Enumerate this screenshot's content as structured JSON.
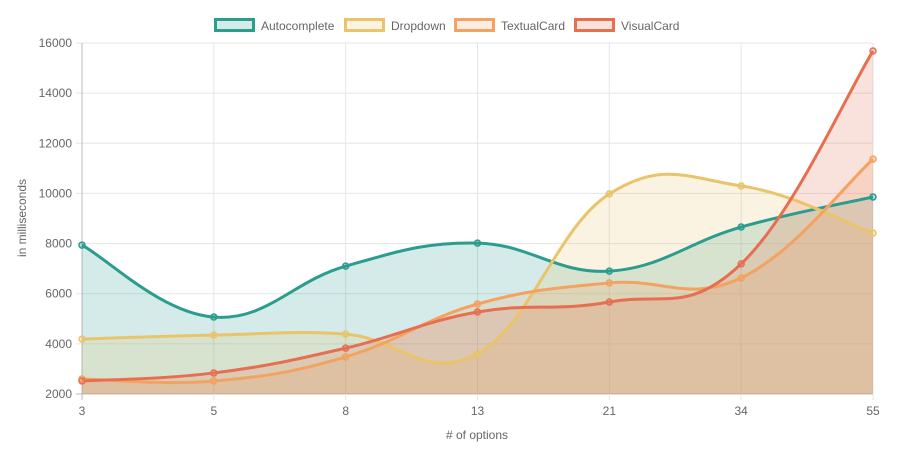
{
  "chart_data": {
    "type": "line",
    "title": "",
    "xlabel": "# of options",
    "ylabel": "in milliseconds",
    "categories": [
      "3",
      "5",
      "8",
      "13",
      "21",
      "34",
      "55"
    ],
    "ylim": [
      2000,
      16000
    ],
    "yticks": [
      2000,
      4000,
      6000,
      8000,
      10000,
      12000,
      14000,
      16000
    ],
    "grid": true,
    "legend_position": "top",
    "series": [
      {
        "name": "Autocomplete",
        "color": "#2a9d8f",
        "values": [
          7940,
          5070,
          7100,
          8020,
          6900,
          8660,
          9860
        ]
      },
      {
        "name": "Dropdown",
        "color": "#e9c46a",
        "values": [
          4190,
          4350,
          4390,
          3600,
          9980,
          10300,
          8420
        ]
      },
      {
        "name": "TextualCard",
        "color": "#f4a261",
        "values": [
          2600,
          2520,
          3480,
          5590,
          6430,
          6630,
          11370
        ]
      },
      {
        "name": "VisualCard",
        "color": "#e76f51",
        "values": [
          2520,
          2840,
          3830,
          5270,
          5670,
          7190,
          15680
        ]
      }
    ]
  }
}
